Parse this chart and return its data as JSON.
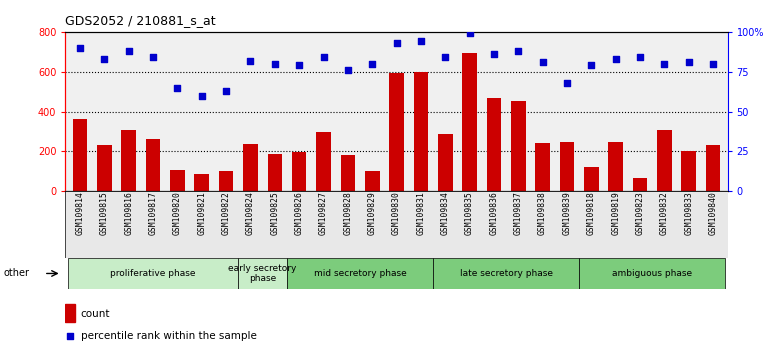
{
  "title": "GDS2052 / 210881_s_at",
  "categories": [
    "GSM109814",
    "GSM109815",
    "GSM109816",
    "GSM109817",
    "GSM109820",
    "GSM109821",
    "GSM109822",
    "GSM109824",
    "GSM109825",
    "GSM109826",
    "GSM109827",
    "GSM109828",
    "GSM109829",
    "GSM109830",
    "GSM109831",
    "GSM109834",
    "GSM109835",
    "GSM109836",
    "GSM109837",
    "GSM109838",
    "GSM109839",
    "GSM109818",
    "GSM109819",
    "GSM109823",
    "GSM109832",
    "GSM109833",
    "GSM109840"
  ],
  "bar_values": [
    360,
    230,
    305,
    260,
    105,
    85,
    100,
    235,
    185,
    195,
    295,
    180,
    100,
    595,
    600,
    285,
    695,
    470,
    455,
    240,
    245,
    120,
    245,
    65,
    305,
    200,
    230
  ],
  "dot_values": [
    90,
    83,
    88,
    84,
    65,
    60,
    63,
    82,
    80,
    79,
    84,
    76,
    80,
    93,
    94,
    84,
    99,
    86,
    88,
    81,
    68,
    79,
    83,
    84,
    80,
    81,
    80
  ],
  "phase_configs": [
    {
      "label": "proliferative phase",
      "start": 0,
      "end": 7,
      "color": "#c8edc8"
    },
    {
      "label": "early secretory\nphase",
      "start": 7,
      "end": 9,
      "color": "#c8edc8"
    },
    {
      "label": "mid secretory phase",
      "start": 9,
      "end": 15,
      "color": "#7ccc7c"
    },
    {
      "label": "late secretory phase",
      "start": 15,
      "end": 21,
      "color": "#7ccc7c"
    },
    {
      "label": "ambiguous phase",
      "start": 21,
      "end": 27,
      "color": "#7ccc7c"
    }
  ],
  "ylim_left": [
    0,
    800
  ],
  "ylim_right": [
    0,
    100
  ],
  "yticks_left": [
    0,
    200,
    400,
    600,
    800
  ],
  "yticks_right": [
    0,
    25,
    50,
    75,
    100
  ],
  "bar_color": "#cc0000",
  "dot_color": "#0000cc",
  "background_color": "#ffffff",
  "other_label": "other",
  "legend_count": "count",
  "legend_percentile": "percentile rank within the sample",
  "title_fontsize": 9,
  "tick_fontsize": 7,
  "xlabel_fontsize": 5.8,
  "phase_fontsize": 6.5,
  "legend_fontsize": 7.5
}
